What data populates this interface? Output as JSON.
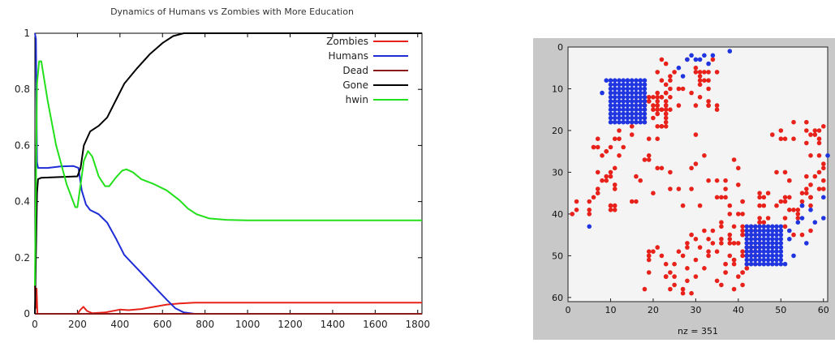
{
  "chart_data": [
    {
      "type": "line",
      "title": "Dynamics of Humans vs Zombies with More Education",
      "xlabel": "",
      "ylabel": "",
      "xlim": [
        0,
        1820
      ],
      "ylim": [
        0,
        1
      ],
      "x_ticks": [
        "0",
        "200",
        "400",
        "600",
        "800",
        "1000",
        "1200",
        "1400",
        "1600",
        "1800"
      ],
      "y_ticks": [
        "0",
        "0.2",
        "0.4",
        "0.6",
        "0.8",
        "1"
      ],
      "legend_position": "top-right",
      "grid": false,
      "series": [
        {
          "name": "Zombies",
          "color": "#e8221b",
          "points": [
            [
              0,
              0.1
            ],
            [
              3,
              0.02
            ],
            [
              8,
              0.09
            ],
            [
              12,
              0.0
            ],
            [
              30,
              0.0
            ],
            [
              200,
              0.0
            ],
            [
              215,
              0.015
            ],
            [
              228,
              0.025
            ],
            [
              245,
              0.01
            ],
            [
              270,
              0.002
            ],
            [
              330,
              0.005
            ],
            [
              380,
              0.012
            ],
            [
              400,
              0.015
            ],
            [
              440,
              0.013
            ],
            [
              500,
              0.017
            ],
            [
              560,
              0.025
            ],
            [
              620,
              0.033
            ],
            [
              680,
              0.037
            ],
            [
              750,
              0.04
            ],
            [
              1000,
              0.04
            ],
            [
              1820,
              0.04
            ]
          ]
        },
        {
          "name": "Humans",
          "color": "#1f2dd6",
          "points": [
            [
              0,
              1.0
            ],
            [
              5,
              0.98
            ],
            [
              10,
              0.54
            ],
            [
              15,
              0.52
            ],
            [
              60,
              0.52
            ],
            [
              120,
              0.525
            ],
            [
              180,
              0.527
            ],
            [
              205,
              0.52
            ],
            [
              220,
              0.44
            ],
            [
              240,
              0.39
            ],
            [
              260,
              0.37
            ],
            [
              300,
              0.355
            ],
            [
              340,
              0.325
            ],
            [
              380,
              0.27
            ],
            [
              420,
              0.21
            ],
            [
              470,
              0.17
            ],
            [
              520,
              0.13
            ],
            [
              570,
              0.09
            ],
            [
              620,
              0.05
            ],
            [
              660,
              0.02
            ],
            [
              700,
              0.005
            ],
            [
              750,
              0.0
            ],
            [
              800,
              0.0
            ],
            [
              1820,
              0.0
            ]
          ]
        },
        {
          "name": "Dead",
          "color": "#8b1a1a",
          "points": [
            [
              0,
              0.0
            ],
            [
              1820,
              0.0
            ]
          ]
        },
        {
          "name": "Gone",
          "color": "#000000",
          "points": [
            [
              0,
              0.0
            ],
            [
              10,
              0.43
            ],
            [
              15,
              0.48
            ],
            [
              30,
              0.485
            ],
            [
              100,
              0.487
            ],
            [
              200,
              0.49
            ],
            [
              215,
              0.52
            ],
            [
              230,
              0.6
            ],
            [
              260,
              0.65
            ],
            [
              300,
              0.67
            ],
            [
              340,
              0.7
            ],
            [
              380,
              0.76
            ],
            [
              420,
              0.82
            ],
            [
              480,
              0.875
            ],
            [
              540,
              0.925
            ],
            [
              600,
              0.965
            ],
            [
              650,
              0.99
            ],
            [
              700,
              1.0
            ],
            [
              760,
              1.0
            ],
            [
              1820,
              1.0
            ]
          ]
        },
        {
          "name": "hwin",
          "color": "#22e01a",
          "points": [
            [
              0,
              0.1
            ],
            [
              10,
              0.82
            ],
            [
              20,
              0.9
            ],
            [
              30,
              0.9
            ],
            [
              60,
              0.76
            ],
            [
              100,
              0.6
            ],
            [
              150,
              0.46
            ],
            [
              190,
              0.38
            ],
            [
              200,
              0.38
            ],
            [
              215,
              0.46
            ],
            [
              230,
              0.545
            ],
            [
              250,
              0.58
            ],
            [
              270,
              0.56
            ],
            [
              300,
              0.49
            ],
            [
              330,
              0.455
            ],
            [
              350,
              0.455
            ],
            [
              380,
              0.485
            ],
            [
              410,
              0.51
            ],
            [
              430,
              0.515
            ],
            [
              460,
              0.505
            ],
            [
              500,
              0.48
            ],
            [
              560,
              0.462
            ],
            [
              620,
              0.44
            ],
            [
              680,
              0.405
            ],
            [
              720,
              0.375
            ],
            [
              760,
              0.355
            ],
            [
              820,
              0.34
            ],
            [
              900,
              0.335
            ],
            [
              1000,
              0.333
            ],
            [
              1820,
              0.333
            ]
          ]
        }
      ]
    },
    {
      "type": "scatter",
      "title": "",
      "xlabel": "nz = 351",
      "ylabel": "",
      "xlim": [
        0,
        61
      ],
      "ylim": [
        61,
        0
      ],
      "x_ticks": [
        "0",
        "10",
        "20",
        "30",
        "40",
        "50",
        "60"
      ],
      "y_ticks": [
        "0",
        "10",
        "20",
        "30",
        "40",
        "50",
        "60"
      ],
      "series": [
        {
          "color": "#1f35e0",
          "marker": "dot",
          "blocks": [
            {
              "x": [
                10,
                18
              ],
              "y": [
                8,
                18
              ]
            },
            {
              "x": [
                42,
                50
              ],
              "y": [
                43,
                52
              ]
            }
          ],
          "points": [
            [
              9,
              8
            ],
            [
              8,
              11
            ],
            [
              11,
              9
            ],
            [
              14,
              8
            ],
            [
              17,
              8
            ],
            [
              18,
              9
            ],
            [
              26,
              5
            ],
            [
              27,
              7
            ],
            [
              28,
              3
            ],
            [
              29,
              2
            ],
            [
              30,
              3
            ],
            [
              31,
              3
            ],
            [
              32,
              2
            ],
            [
              33,
              4
            ],
            [
              34,
              2
            ],
            [
              38,
              1
            ],
            [
              5,
              43
            ],
            [
              51,
              52
            ],
            [
              53,
              50
            ],
            [
              56,
              47
            ],
            [
              58,
              42
            ],
            [
              60,
              36
            ],
            [
              61,
              26
            ],
            [
              55,
              38
            ],
            [
              54,
              42
            ],
            [
              52,
              44
            ],
            [
              52,
              46
            ],
            [
              55,
              41
            ],
            [
              57,
              39
            ],
            [
              60,
              41
            ]
          ]
        },
        {
          "color": "#e8221b",
          "marker": "dot",
          "clusters": [
            {
              "x": [
                15,
                24
              ],
              "y": [
                10,
                20
              ],
              "n": 42
            },
            {
              "x": [
                21,
                35
              ],
              "y": [
                3,
                15
              ],
              "n": 42
            },
            {
              "x": [
                6,
                12
              ],
              "y": [
                22,
                40
              ],
              "n": 28
            },
            {
              "x": [
                12,
                30
              ],
              "y": [
                20,
                38
              ],
              "n": 22
            },
            {
              "x": [
                26,
                42
              ],
              "y": [
                25,
                40
              ],
              "n": 18
            },
            {
              "x": [
                48,
                61
              ],
              "y": [
                18,
                38
              ],
              "n": 36
            },
            {
              "x": [
                44,
                58
              ],
              "y": [
                35,
                45
              ],
              "n": 30
            },
            {
              "x": [
                36,
                46
              ],
              "y": [
                40,
                52
              ],
              "n": 34
            },
            {
              "x": [
                26,
                44
              ],
              "y": [
                44,
                58
              ],
              "n": 40
            },
            {
              "x": [
                18,
                30
              ],
              "y": [
                46,
                60
              ],
              "n": 24
            },
            {
              "x": [
                1,
                5
              ],
              "y": [
                37,
                41
              ],
              "n": 6
            }
          ]
        }
      ]
    }
  ]
}
